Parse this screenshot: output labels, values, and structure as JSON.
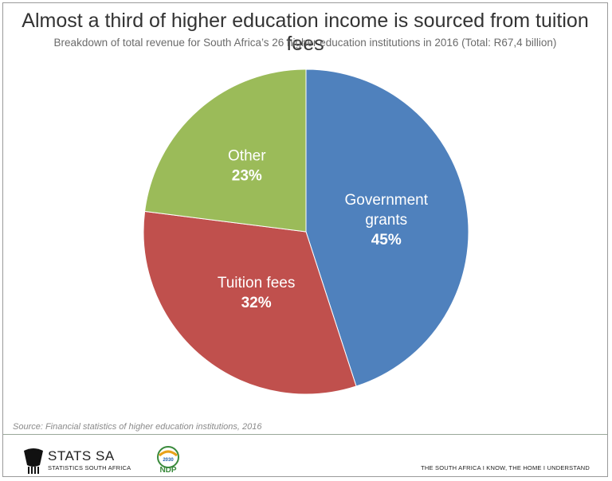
{
  "chart_data": {
    "type": "pie",
    "title": "Almost a third of higher education income is sourced from tuition fees",
    "subtitle": "Breakdown of total revenue for South Africa’s 26 higher education institutions in 2016 (Total: R67,4 billion)",
    "slices": [
      {
        "label": [
          "Government",
          "grants"
        ],
        "value": 45,
        "value_label": "45%",
        "color": "#4f81bd"
      },
      {
        "label": [
          "Tuition fees"
        ],
        "value": 32,
        "value_label": "32%",
        "color": "#c0504d"
      },
      {
        "label": [
          "Other"
        ],
        "value": 23,
        "value_label": "23%",
        "color": "#9bbb59"
      }
    ],
    "start": "12 o'clock",
    "direction": "clockwise"
  },
  "source": "Source: Financial statistics of higher education institutions, 2016",
  "footer": {
    "logo_main": "STATS SA",
    "logo_sub": "STATISTICS SOUTH AFRICA",
    "ndp_text": "NDP",
    "ndp_year": "2030",
    "tagline": "THE SOUTH AFRICA I KNOW, THE HOME I UNDERSTAND"
  },
  "colors": {
    "border": "#9a9a9a",
    "footer_line": "#9aa79a",
    "ndp_green": "#3a8a3c",
    "ndp_blue": "#1f5fa8"
  }
}
